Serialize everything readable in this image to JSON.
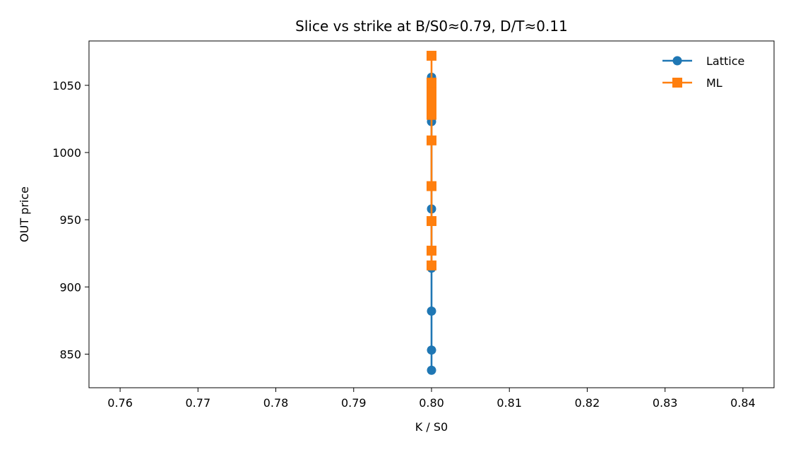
{
  "chart_data": {
    "type": "line",
    "title": "Slice vs strike at B/S0≈0.79, D/T≈0.11",
    "xlabel": "K / S0",
    "ylabel": "OUT price",
    "xlim": [
      0.756,
      0.844
    ],
    "ylim": [
      825,
      1083
    ],
    "xticks": [
      0.76,
      0.77,
      0.78,
      0.79,
      0.8,
      0.81,
      0.82,
      0.83,
      0.84
    ],
    "xtick_labels": [
      "0.76",
      "0.77",
      "0.78",
      "0.79",
      "0.80",
      "0.81",
      "0.82",
      "0.83",
      "0.84"
    ],
    "yticks": [
      850,
      900,
      950,
      1000,
      1050
    ],
    "ytick_labels": [
      "850",
      "900",
      "950",
      "1000",
      "1050"
    ],
    "grid": false,
    "legend": {
      "position": "top-right",
      "frame": false
    },
    "series": [
      {
        "name": "Lattice",
        "color": "#1f77b4",
        "marker": "circle",
        "x": [
          0.8,
          0.8,
          0.8,
          0.8,
          0.8,
          0.8,
          0.8,
          0.8,
          0.8,
          0.8
        ],
        "y": [
          838,
          853,
          882,
          914,
          958,
          1023,
          1030,
          1040,
          1050,
          1056
        ]
      },
      {
        "name": "ML",
        "color": "#ff7f0e",
        "marker": "square",
        "x": [
          0.8,
          0.8,
          0.8,
          0.8,
          0.8,
          0.8,
          0.8,
          0.8,
          0.8,
          0.8,
          0.8,
          0.8
        ],
        "y": [
          916,
          927,
          949,
          975,
          1009,
          1028,
          1032,
          1037,
          1042,
          1047,
          1052,
          1072
        ]
      }
    ]
  }
}
